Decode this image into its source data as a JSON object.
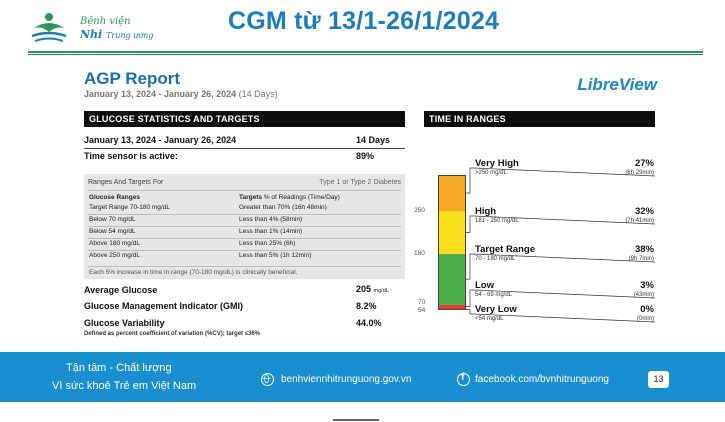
{
  "colors": {
    "title_blue": "#1b7cc4",
    "footer_blue": "#1a8fcf",
    "very_high": "#f5a623",
    "high": "#f7e01b",
    "target": "#4bb04a",
    "low": "#e53a2f",
    "very_low": "#a01c1c"
  },
  "header": {
    "logo_line1": "Bệnh viện",
    "logo_line2": "Nhi",
    "logo_line2b": "Trung ương",
    "title": "CGM từ 13/1-26/1/2024"
  },
  "report": {
    "title": "AGP Report",
    "brand": "LibreView",
    "dates": "January 13, 2024 - January 26, 2024",
    "days_note": "(14 Days)",
    "glucose_stats": {
      "heading": "GLUCOSE STATISTICS AND TARGETS",
      "period": "January 13, 2024 - January 26, 2024",
      "period_value": "14 Days",
      "active_label": "Time sensor is active:",
      "active_value": "89%"
    },
    "targets": {
      "heading": "Ranges And Targets For",
      "heading_right": "Type 1 or Type 2 Diabetes",
      "col1": "Glucose Ranges",
      "col2_bold": "Targets",
      "col2_rest": "% of Readings (Time/Day)",
      "rows": [
        {
          "range": "Target Range 70-180 mg/dL",
          "target": "Greater than 70% (16h 48min)"
        },
        {
          "range": "Below 70 mg/dL",
          "target": "Less than 4% (58min)"
        },
        {
          "range": "Below 54 mg/dL",
          "target": "Less than 1% (14min)"
        },
        {
          "range": "Above 180 mg/dL",
          "target": "Less than 25% (6h)"
        },
        {
          "range": "Above 250 mg/dL",
          "target": "Less than 5% (1h 12min)"
        }
      ],
      "footnote": "Each 5% increase in time in range (70-180 mg/dL) is clinically beneficial."
    },
    "stats": {
      "avg_label": "Average Glucose",
      "avg_value": "205",
      "avg_unit": "mg/dL",
      "gmi_label": "Glucose Management Indicator (GMI)",
      "gmi_value": "8.2%",
      "var_label": "Glucose Variability",
      "var_value": "44.0%",
      "var_note": "Defined as percent coefficient of variation (%CV); target ≤36%"
    },
    "tir": {
      "heading": "TIME IN RANGES",
      "axis": [
        "250",
        "180",
        "70",
        "54"
      ],
      "ranges": [
        {
          "key": "very_high",
          "name": "Very High",
          "sub": ">250 mg/dL",
          "pct": "27%",
          "time": "(6h 29min)",
          "fraction": 0.27
        },
        {
          "key": "high",
          "name": "High",
          "sub": "181 - 250 mg/dL",
          "pct": "32%",
          "time": "(7h 41min)",
          "fraction": 0.32
        },
        {
          "key": "target",
          "name": "Target Range",
          "sub": "70 - 180 mg/dL",
          "pct": "38%",
          "time": "(9h 7min)",
          "fraction": 0.38
        },
        {
          "key": "low",
          "name": "Low",
          "sub": "54 - 69 mg/dL",
          "pct": "3%",
          "time": "(43min)",
          "fraction": 0.03
        },
        {
          "key": "very_low",
          "name": "Very Low",
          "sub": "<54 mg/dL",
          "pct": "0%",
          "time": "(0min)",
          "fraction": 0.0
        }
      ]
    }
  },
  "footer": {
    "slogan1": "Tận tâm - Chất lượng",
    "slogan2": "Vì sức khoẻ Trẻ em Việt Nam",
    "website": "benhviennhitrunguong.gov.vn",
    "facebook": "facebook.com/bvnhitrunguong",
    "page": "13"
  }
}
